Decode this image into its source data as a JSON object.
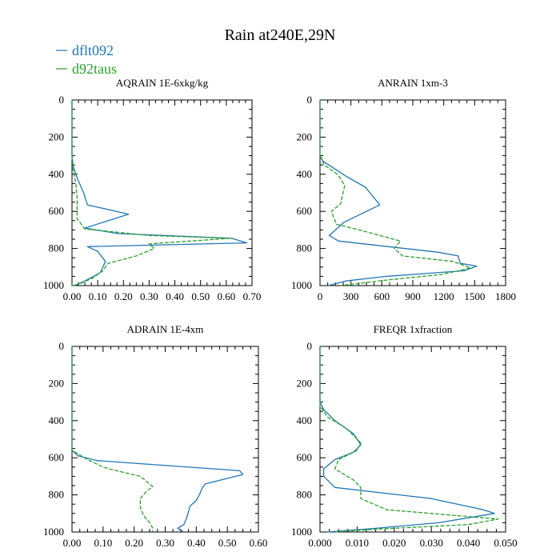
{
  "title": "Rain at240E,29N",
  "colors": {
    "blue": "#1f77b4",
    "green": "#2ca02c"
  },
  "legend": [
    {
      "label": "dflt092",
      "color": "#1f77b4",
      "dash": "solid"
    },
    {
      "label": "d92taus",
      "color": "#2ca02c",
      "dash": "dashed"
    }
  ],
  "chart_data": [
    {
      "type": "line",
      "title": "AQRAIN  1E-6xkg/kg",
      "xlim": [
        0,
        0.7
      ],
      "xticks": [
        0,
        0.1,
        0.2,
        0.3,
        0.4,
        0.5,
        0.6,
        0.7
      ],
      "xtick_labels": [
        "0.00",
        "0.10",
        "0.20",
        "0.30",
        "0.40",
        "0.50",
        "0.60",
        "0.70"
      ],
      "ylim": [
        0,
        1000
      ],
      "yticks": [
        0,
        200,
        400,
        600,
        800,
        1000
      ],
      "ytick_labels": [
        "0",
        "200",
        "400",
        "600",
        "800",
        "1000"
      ],
      "y_inverted": true,
      "grid": false,
      "series": [
        {
          "name": "dflt092",
          "color": "#1f77b4",
          "dash": "solid",
          "points": [
            [
              0,
              0
            ],
            [
              0,
              300
            ],
            [
              0.005,
              360
            ],
            [
              0.02,
              420
            ],
            [
              0.045,
              500
            ],
            [
              0.06,
              565
            ],
            [
              0.22,
              615
            ],
            [
              0.05,
              690
            ],
            [
              0.18,
              720
            ],
            [
              0.62,
              745
            ],
            [
              0.68,
              770
            ],
            [
              0.06,
              790
            ],
            [
              0.1,
              815
            ],
            [
              0.13,
              870
            ],
            [
              0.11,
              930
            ],
            [
              0.05,
              975
            ],
            [
              0.01,
              1000
            ]
          ]
        },
        {
          "name": "d92taus",
          "color": "#2ca02c",
          "dash": "dashed",
          "points": [
            [
              0,
              0
            ],
            [
              0,
              300
            ],
            [
              0.005,
              380
            ],
            [
              0.015,
              450
            ],
            [
              0.02,
              530
            ],
            [
              0.02,
              640
            ],
            [
              0.05,
              695
            ],
            [
              0.3,
              730
            ],
            [
              0.62,
              745
            ],
            [
              0.3,
              775
            ],
            [
              0.32,
              800
            ],
            [
              0.25,
              840
            ],
            [
              0.14,
              880
            ],
            [
              0.12,
              920
            ],
            [
              0.08,
              960
            ],
            [
              0.03,
              990
            ],
            [
              0,
              1000
            ]
          ]
        }
      ]
    },
    {
      "type": "line",
      "title": "ANRAIN  1xm-3",
      "xlim": [
        0,
        1800
      ],
      "xticks": [
        0,
        300,
        600,
        900,
        1200,
        1500,
        1800
      ],
      "xtick_labels": [
        "0",
        "300",
        "600",
        "900",
        "1200",
        "1500",
        "1800"
      ],
      "ylim": [
        0,
        1000
      ],
      "yticks": [
        0,
        200,
        400,
        600,
        800,
        1000
      ],
      "ytick_labels": [
        "0",
        "200",
        "400",
        "600",
        "800",
        "1000"
      ],
      "y_inverted": true,
      "grid": false,
      "series": [
        {
          "name": "dflt092",
          "color": "#1f77b4",
          "dash": "solid",
          "points": [
            [
              0,
              0
            ],
            [
              0,
              300
            ],
            [
              30,
              330
            ],
            [
              250,
              410
            ],
            [
              440,
              470
            ],
            [
              580,
              565
            ],
            [
              230,
              660
            ],
            [
              90,
              730
            ],
            [
              180,
              760
            ],
            [
              1140,
              820
            ],
            [
              1340,
              840
            ],
            [
              1360,
              880
            ],
            [
              1520,
              895
            ],
            [
              1400,
              920
            ],
            [
              650,
              950
            ],
            [
              250,
              975
            ],
            [
              80,
              1000
            ]
          ]
        },
        {
          "name": "d92taus",
          "color": "#2ca02c",
          "dash": "dashed",
          "points": [
            [
              0,
              0
            ],
            [
              0,
              300
            ],
            [
              40,
              350
            ],
            [
              170,
              400
            ],
            [
              240,
              460
            ],
            [
              200,
              560
            ],
            [
              110,
              600
            ],
            [
              160,
              670
            ],
            [
              380,
              700
            ],
            [
              780,
              760
            ],
            [
              720,
              800
            ],
            [
              800,
              840
            ],
            [
              1290,
              870
            ],
            [
              1460,
              905
            ],
            [
              1180,
              940
            ],
            [
              650,
              970
            ],
            [
              200,
              1000
            ]
          ]
        }
      ]
    },
    {
      "type": "line",
      "title": "ADRAIN  1E-4xm",
      "xlim": [
        0,
        0.6
      ],
      "xticks": [
        0,
        0.1,
        0.2,
        0.3,
        0.4,
        0.5,
        0.6
      ],
      "xtick_labels": [
        "0.00",
        "0.10",
        "0.20",
        "0.30",
        "0.40",
        "0.50",
        "0.60"
      ],
      "ylim": [
        0,
        1000
      ],
      "yticks": [
        0,
        200,
        400,
        600,
        800,
        1000
      ],
      "ytick_labels": [
        "0",
        "200",
        "400",
        "600",
        "800",
        "1000"
      ],
      "y_inverted": true,
      "grid": false,
      "series": [
        {
          "name": "dflt092",
          "color": "#1f77b4",
          "dash": "solid",
          "points": [
            [
              0,
              0
            ],
            [
              0,
              560
            ],
            [
              0.02,
              590
            ],
            [
              0.08,
              615
            ],
            [
              0.54,
              670
            ],
            [
              0.55,
              690
            ],
            [
              0.43,
              740
            ],
            [
              0.42,
              760
            ],
            [
              0.41,
              800
            ],
            [
              0.4,
              830
            ],
            [
              0.38,
              860
            ],
            [
              0.37,
              920
            ],
            [
              0.36,
              960
            ],
            [
              0.34,
              980
            ],
            [
              0.36,
              1000
            ]
          ]
        },
        {
          "name": "d92taus",
          "color": "#2ca02c",
          "dash": "dashed",
          "points": [
            [
              0,
              0
            ],
            [
              0,
              560
            ],
            [
              0.05,
              610
            ],
            [
              0.1,
              650
            ],
            [
              0.12,
              660
            ],
            [
              0.22,
              700
            ],
            [
              0.26,
              755
            ],
            [
              0.24,
              780
            ],
            [
              0.22,
              820
            ],
            [
              0.22,
              870
            ],
            [
              0.23,
              910
            ],
            [
              0.25,
              950
            ],
            [
              0.26,
              980
            ],
            [
              0.26,
              1000
            ]
          ]
        }
      ]
    },
    {
      "type": "line",
      "title": "FREQR  1xfraction",
      "xlim": [
        0,
        0.05
      ],
      "xticks": [
        0,
        0.01,
        0.02,
        0.03,
        0.04,
        0.05
      ],
      "xtick_labels": [
        "0.000",
        "0.010",
        "0.020",
        "0.030",
        "0.040",
        "0.050"
      ],
      "ylim": [
        0,
        1000
      ],
      "yticks": [
        0,
        200,
        400,
        600,
        800,
        1000
      ],
      "ytick_labels": [
        "0",
        "200",
        "400",
        "600",
        "800",
        "1000"
      ],
      "y_inverted": true,
      "grid": false,
      "series": [
        {
          "name": "dflt092",
          "color": "#1f77b4",
          "dash": "solid",
          "points": [
            [
              0,
              0
            ],
            [
              0,
              300
            ],
            [
              0.001,
              340
            ],
            [
              0.004,
              400
            ],
            [
              0.009,
              470
            ],
            [
              0.011,
              530
            ],
            [
              0.009,
              570
            ],
            [
              0.004,
              610
            ],
            [
              0.001,
              660
            ],
            [
              0.001,
              700
            ],
            [
              0.004,
              760
            ],
            [
              0.03,
              820
            ],
            [
              0.044,
              880
            ],
            [
              0.047,
              900
            ],
            [
              0.032,
              950
            ],
            [
              0.015,
              980
            ],
            [
              0.002,
              1000
            ]
          ]
        },
        {
          "name": "d92taus",
          "color": "#2ca02c",
          "dash": "dashed",
          "points": [
            [
              0,
              0
            ],
            [
              0,
              320
            ],
            [
              0.002,
              380
            ],
            [
              0.007,
              440
            ],
            [
              0.011,
              520
            ],
            [
              0.01,
              560
            ],
            [
              0.005,
              610
            ],
            [
              0.004,
              660
            ],
            [
              0.009,
              720
            ],
            [
              0.011,
              760
            ],
            [
              0.011,
              820
            ],
            [
              0.018,
              880
            ],
            [
              0.048,
              930
            ],
            [
              0.04,
              960
            ],
            [
              0.015,
              985
            ],
            [
              0.004,
              1000
            ]
          ]
        }
      ]
    }
  ]
}
